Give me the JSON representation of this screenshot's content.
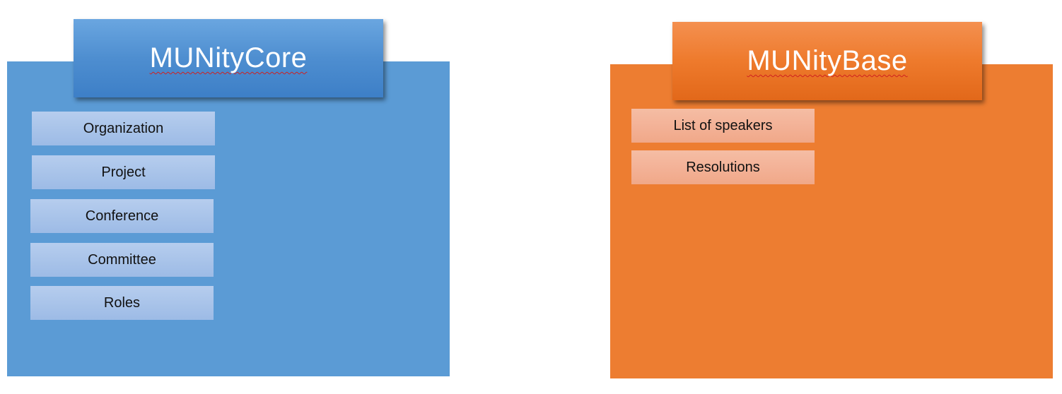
{
  "core": {
    "title": "MUNityCore",
    "items": [
      {
        "label": "Organization"
      },
      {
        "label": "Project"
      },
      {
        "label": "Conference"
      },
      {
        "label": "Committee"
      },
      {
        "label": "Roles"
      }
    ],
    "color": "#5b9bd5"
  },
  "base": {
    "title": "MUNityBase",
    "items": [
      {
        "label": "List of speakers"
      },
      {
        "label": "Resolutions"
      }
    ],
    "color": "#ed7d31"
  }
}
